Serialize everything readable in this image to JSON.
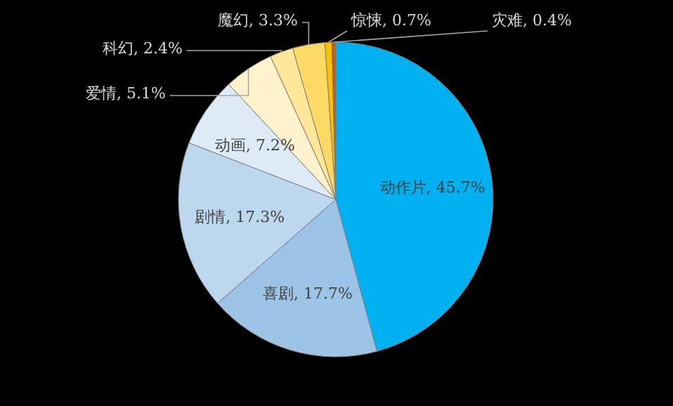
{
  "chart_data": {
    "type": "pie",
    "categories": [
      "动作片",
      "喜剧",
      "剧情",
      "动画",
      "爱情",
      "科幻",
      "魔幻",
      "惊悚",
      "灾难"
    ],
    "values": [
      45.7,
      17.7,
      17.3,
      7.2,
      5.1,
      2.4,
      3.3,
      0.7,
      0.4
    ],
    "value_labels": [
      "45.7%",
      "17.7%",
      "17.3%",
      "7.2%",
      "5.1%",
      "2.4%",
      "3.3%",
      "0.7%",
      "0.4%"
    ],
    "colors": [
      "#00b0f0",
      "#9dc3e6",
      "#bdd7ee",
      "#deebf7",
      "#fff2cc",
      "#ffe699",
      "#ffd966",
      "#ffc000",
      "#c55a11"
    ],
    "legend": false
  }
}
